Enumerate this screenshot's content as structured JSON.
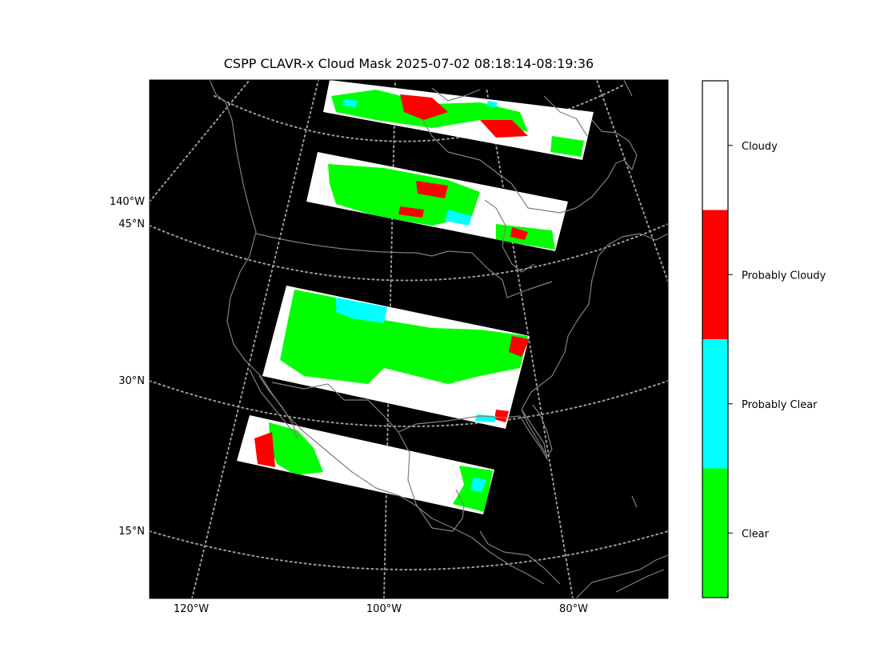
{
  "title": "CSPP CLAVR-x Cloud Mask 2025-07-02 08:18:14-08:19:36",
  "map": {
    "background": "#000000",
    "coastline_color": "#808080",
    "graticule_color": "#9a9a9a",
    "graticule_style": "dotted",
    "latitude_labels": [
      "45°N",
      "30°N",
      "15°N"
    ],
    "longitude_labels": [
      "120°W",
      "100°W",
      "80°W"
    ],
    "edge_longitude_label": "140°W"
  },
  "swaths": [
    {
      "name": "swath-1",
      "dominant": "mixed"
    },
    {
      "name": "swath-2",
      "dominant": "mixed"
    },
    {
      "name": "swath-3",
      "dominant": "clear"
    },
    {
      "name": "swath-4",
      "dominant": "cloudy"
    }
  ],
  "colorbar": {
    "categories": [
      {
        "label": "Cloudy",
        "color": "#ffffff"
      },
      {
        "label": "Probably Cloudy",
        "color": "#ff0000"
      },
      {
        "label": "Probably Clear",
        "color": "#00ffff"
      },
      {
        "label": "Clear",
        "color": "#00ff00"
      }
    ]
  }
}
